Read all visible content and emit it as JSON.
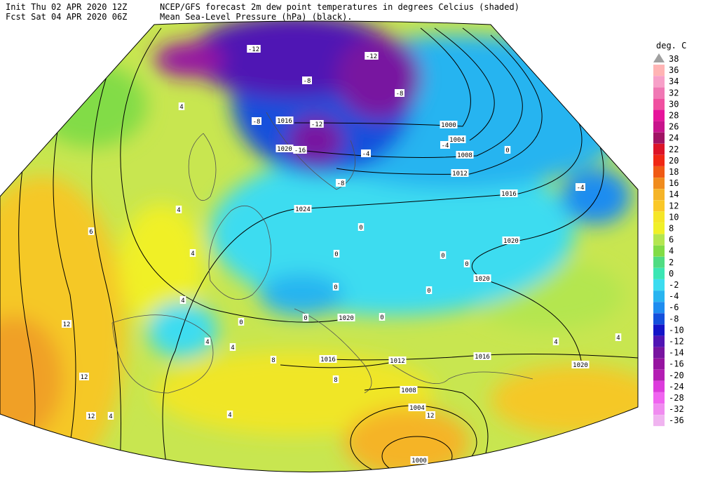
{
  "header": {
    "init": "Init  Thu 02 APR 2020 12Z",
    "fcst": "Fcst Sat 04 APR 2020 06Z",
    "title": "NCEP/GFS forecast 2m dew point temperatures in degrees Celcius (shaded)",
    "subtitle": "Mean Sea-Level Pressure (hPa) (black)."
  },
  "legend": {
    "title": "deg. C",
    "labels": [
      38,
      36,
      34,
      32,
      30,
      28,
      26,
      24,
      22,
      20,
      18,
      16,
      14,
      12,
      10,
      8,
      6,
      4,
      2,
      0,
      -2,
      -4,
      -6,
      -8,
      -10,
      -12,
      -14,
      -16,
      -20,
      -24,
      -28,
      -32,
      -36
    ],
    "colors": [
      "#a0a0a0",
      "#ffb4b4",
      "#f7a0c8",
      "#f078b4",
      "#f050a0",
      "#e6149b",
      "#c8148c",
      "#a01464",
      "#dc1428",
      "#f02814",
      "#f05a14",
      "#f08c1e",
      "#f5b428",
      "#fac828",
      "#f5e628",
      "#f0f028",
      "#b4e650",
      "#82dc46",
      "#50dc82",
      "#3ce6b4",
      "#3cdcf0",
      "#28b4f0",
      "#1e8cf0",
      "#1450dc",
      "#1414c8",
      "#5014b4",
      "#7814a0",
      "#9614a0",
      "#b41eb4",
      "#dc3cdc",
      "#f064f0",
      "#f08cf0",
      "#f0b4f0"
    ]
  },
  "map": {
    "isobar_labels": [
      1000,
      1004,
      1008,
      1012,
      1016,
      1020,
      1024,
      1020,
      1020,
      1016,
      1012,
      1016,
      1020,
      1008,
      1004,
      1000,
      1016,
      1020
    ],
    "dewpoint_labels": [
      -12,
      -12,
      -8,
      -8,
      -8,
      -12,
      -16,
      -4,
      -4,
      0,
      -4,
      -8,
      4,
      4,
      6,
      4,
      0,
      0,
      0,
      0,
      0,
      4,
      12,
      4,
      0,
      0,
      4,
      12,
      12,
      4,
      4,
      8,
      8,
      12,
      4,
      4,
      0,
      0
    ]
  }
}
